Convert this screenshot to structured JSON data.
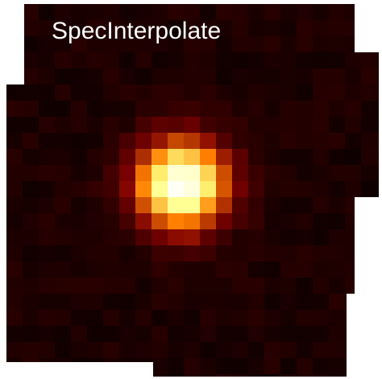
{
  "title": "SpecInterpolate"
}
